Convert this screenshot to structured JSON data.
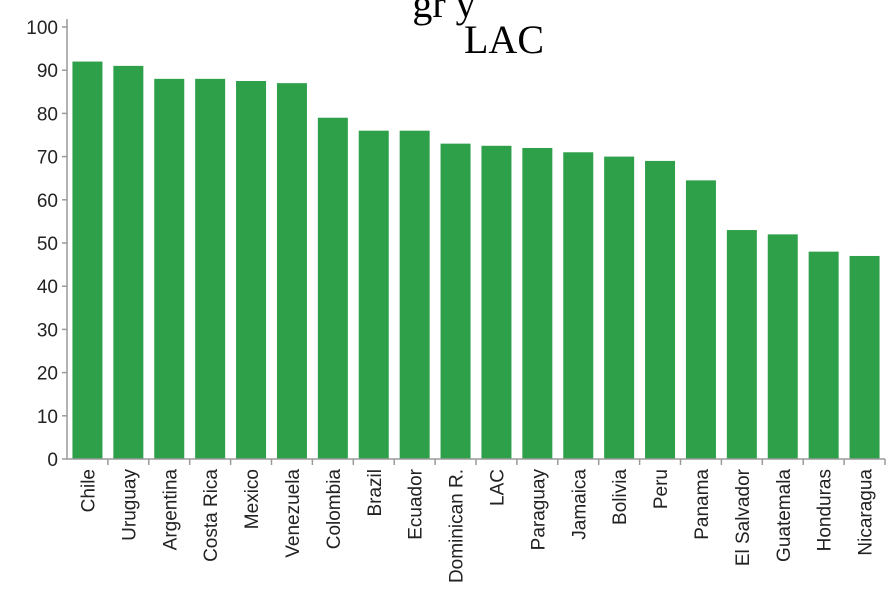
{
  "chart_data": {
    "type": "bar",
    "title_lines": [
      "gr                                    y",
      "LAC"
    ],
    "categories": [
      "Chile",
      "Uruguay",
      "Argentina",
      "Costa Rica",
      "Mexico",
      "Venezuela",
      "Colombia",
      "Brazil",
      "Ecuador",
      "Dominican R.",
      "LAC",
      "Paraguay",
      "Jamaica",
      "Bolivia",
      "Peru",
      "Panama",
      "El Salvador",
      "Guatemala",
      "Honduras",
      "Nicaragua"
    ],
    "values": [
      92,
      91,
      88,
      88,
      87.5,
      87,
      79,
      76,
      76,
      73,
      72.5,
      72,
      71,
      70,
      69,
      64.5,
      53,
      52,
      48,
      47
    ],
    "ylim": [
      0,
      100
    ],
    "yticks": [
      0,
      10,
      20,
      30,
      40,
      50,
      60,
      70,
      80,
      90,
      100
    ],
    "grid": false,
    "bar_color": "#2ea04a",
    "axis_color": "#9a9a9a"
  }
}
